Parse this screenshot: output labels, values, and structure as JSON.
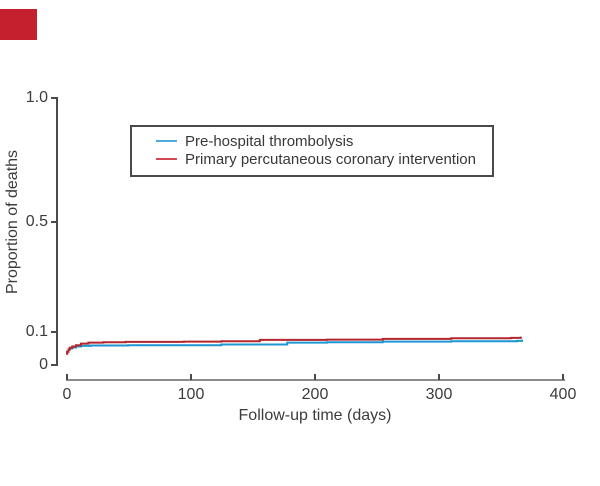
{
  "colors": {
    "corner_mark": "#c5202e",
    "curve_blue": "#1e96d2",
    "curve_red": "#b4262d",
    "legend_swatch_blue": "#4fabdb",
    "legend_swatch_red": "#d0494f",
    "axis_dark": "#4a4a4a",
    "axis_light": "#8c8c8c",
    "text": "#3c3c3c"
  },
  "axes": {
    "xlabel": "Follow-up time (days)",
    "ylabel": "Proportion of deaths",
    "xtick_labels": [
      "0",
      "100",
      "200",
      "300",
      "400"
    ],
    "ytick_labels": [
      "1.0",
      "0.5",
      "0.1",
      "0"
    ]
  },
  "legend": {
    "items": [
      {
        "label": "Pre-hospital thrombolysis",
        "swatch": "#4fabdb"
      },
      {
        "label": "Primary percutaneous coronary intervention",
        "swatch": "#d0494f"
      }
    ]
  },
  "chart_data": {
    "type": "line",
    "subtype": "kaplan-meier-step",
    "title": "",
    "xlabel": "Follow-up time (days)",
    "ylabel": "Proportion of deaths",
    "xlim": [
      0,
      400
    ],
    "ylim": [
      0,
      1.0
    ],
    "xticks": [
      0,
      100,
      200,
      300,
      400
    ],
    "yticks": [
      0,
      0.1,
      0.5,
      1.0
    ],
    "grid": false,
    "legend_position": "upper-left-inside-box",
    "series": [
      {
        "name": "Pre-hospital thrombolysis",
        "color": "#1e96d2",
        "points": [
          [
            0,
            0.036
          ],
          [
            1,
            0.041
          ],
          [
            2,
            0.046
          ],
          [
            3,
            0.05
          ],
          [
            5,
            0.053
          ],
          [
            8,
            0.056
          ],
          [
            12,
            0.058
          ],
          [
            20,
            0.059
          ],
          [
            50,
            0.06
          ],
          [
            125,
            0.062
          ],
          [
            178,
            0.068
          ],
          [
            210,
            0.069
          ],
          [
            255,
            0.071
          ],
          [
            310,
            0.072
          ],
          [
            363,
            0.073
          ],
          [
            367,
            0.077
          ]
        ]
      },
      {
        "name": "Primary percutaneous coronary intervention",
        "color": "#b4262d",
        "points": [
          [
            0,
            0.034
          ],
          [
            1,
            0.04
          ],
          [
            2,
            0.047
          ],
          [
            3,
            0.052
          ],
          [
            5,
            0.056
          ],
          [
            8,
            0.06
          ],
          [
            12,
            0.065
          ],
          [
            18,
            0.068
          ],
          [
            30,
            0.069
          ],
          [
            48,
            0.07
          ],
          [
            95,
            0.071
          ],
          [
            125,
            0.072
          ],
          [
            156,
            0.076
          ],
          [
            210,
            0.077
          ],
          [
            255,
            0.079
          ],
          [
            310,
            0.081
          ],
          [
            358,
            0.082
          ],
          [
            366,
            0.086
          ]
        ]
      }
    ]
  },
  "layout_note": ""
}
